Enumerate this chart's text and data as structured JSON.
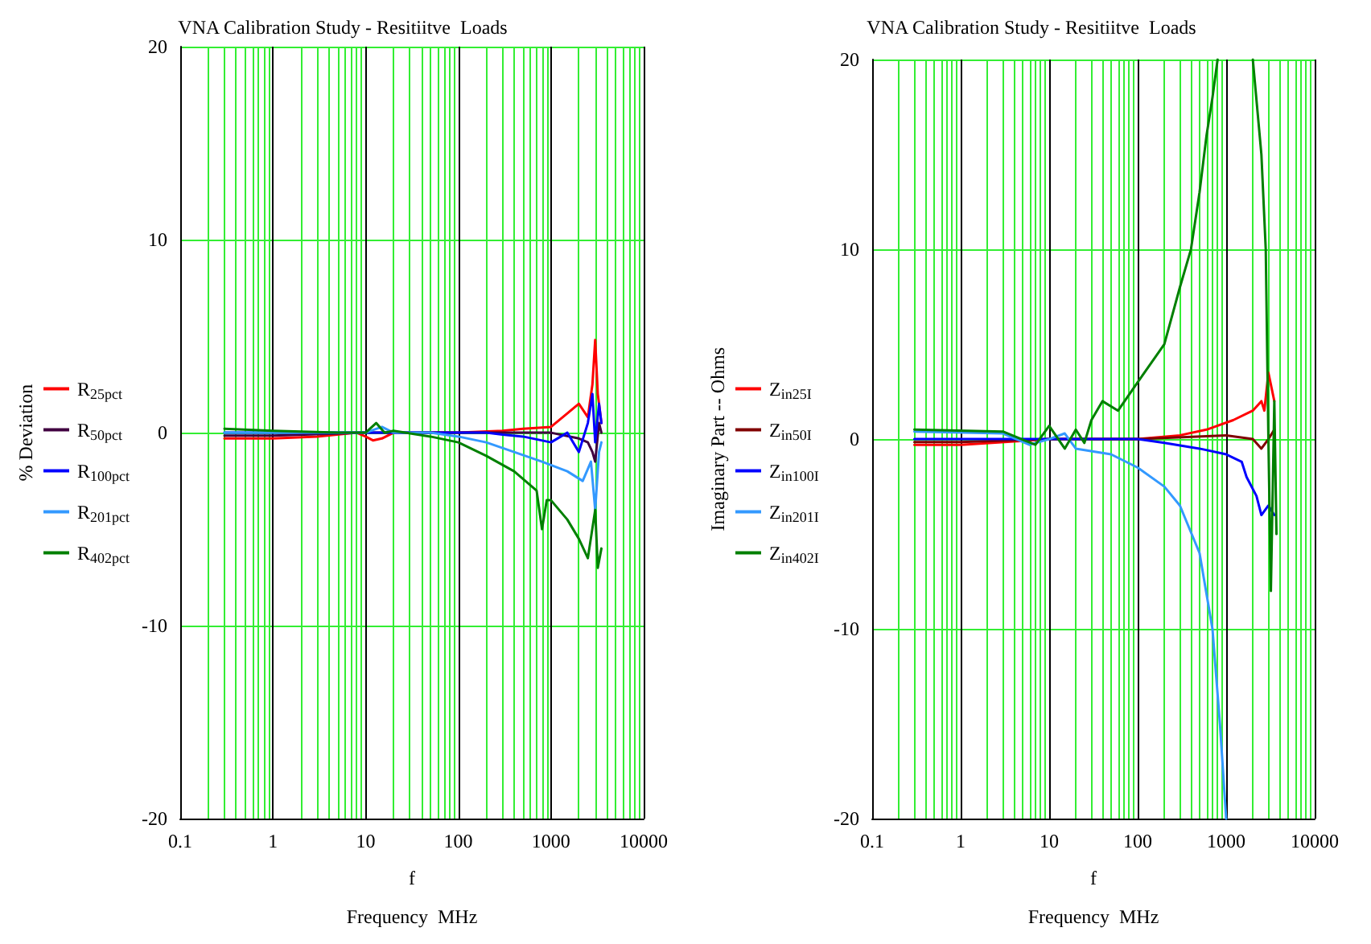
{
  "chart_data": [
    {
      "type": "line",
      "title": "VNA Calibration Study - Resitiitve  Loads",
      "xlabel": "f\nFrequency  MHz",
      "ylabel": "% Deviation",
      "log": "x",
      "grid": true,
      "legend": "left",
      "marker": "none",
      "line_style": "solid",
      "xlim": [
        0.1,
        10000
      ],
      "xticks": [
        0.1,
        1,
        10,
        100,
        1000,
        10000
      ],
      "ylim": [
        -20,
        20
      ],
      "yticks": [
        -20,
        -10,
        0,
        10,
        20
      ],
      "series": [
        {
          "name": "R$_{25pct}$",
          "color": "#ff0000",
          "x": [
            0.3,
            1,
            3,
            8,
            10,
            12,
            15,
            20,
            50,
            100,
            300,
            500,
            1000,
            1500,
            2000,
            2500,
            2800,
            3000,
            3200,
            3500
          ],
          "values": [
            -0.3,
            -0.3,
            -0.2,
            0,
            -0.2,
            -0.4,
            -0.3,
            0,
            0,
            0,
            0.1,
            0.2,
            0.3,
            1,
            1.5,
            0.8,
            2.5,
            4.8,
            2,
            0.5
          ]
        },
        {
          "name": "R$_{50pct}$",
          "color": "#400040",
          "x": [
            0.3,
            1,
            10,
            100,
            1000,
            2000,
            2500,
            2800,
            3000,
            3300,
            3500
          ],
          "values": [
            -0.15,
            -0.15,
            0,
            0,
            0,
            -0.3,
            -0.5,
            -1,
            -1.5,
            0.5,
            0
          ]
        },
        {
          "name": "R$_{100pct}$",
          "color": "#0000ff",
          "x": [
            0.3,
            1,
            10,
            100,
            200,
            300,
            500,
            1000,
            1500,
            2000,
            2500,
            2800,
            3000,
            3300,
            3500
          ],
          "values": [
            0,
            0,
            0,
            0,
            0,
            -0.1,
            -0.2,
            -0.5,
            0,
            -1,
            0.5,
            2,
            -0.5,
            1.5,
            0.5
          ]
        },
        {
          "name": "R$_{201pct}$",
          "color": "#3399ff",
          "x": [
            0.3,
            1,
            10,
            15,
            20,
            50,
            100,
            200,
            400,
            800,
            1500,
            2200,
            2700,
            3000,
            3300,
            3500
          ],
          "values": [
            0,
            0,
            0,
            0.3,
            0,
            0,
            -0.2,
            -0.5,
            -1,
            -1.5,
            -2,
            -2.5,
            -1.5,
            -4,
            -1,
            -0.5
          ]
        },
        {
          "name": "R$_{402pct}$",
          "color": "#007f00",
          "x": [
            0.3,
            1,
            5,
            10,
            13,
            16,
            20,
            50,
            100,
            200,
            400,
            700,
            800,
            900,
            1000,
            1500,
            2000,
            2500,
            3000,
            3200,
            3500
          ],
          "values": [
            0.2,
            0.1,
            0,
            0,
            0.5,
            0,
            0.1,
            -0.2,
            -0.5,
            -1.2,
            -2,
            -3,
            -5,
            -3.5,
            -3.5,
            -4.5,
            -5.5,
            -6.5,
            -4,
            -7,
            -6
          ]
        }
      ]
    },
    {
      "type": "line",
      "title": "VNA Calibration Study - Resitiitve  Loads",
      "xlabel": "f\nFrequency  MHz",
      "ylabel": "Imaginary Part -- Ohms",
      "log": "x",
      "grid": true,
      "legend": "left",
      "marker": "none",
      "line_style": "solid",
      "xlim": [
        0.1,
        10000
      ],
      "xticks": [
        0.1,
        1,
        10,
        100,
        1000,
        10000
      ],
      "ylim": [
        -20,
        20
      ],
      "yticks": [
        -20,
        -10,
        0,
        10,
        20
      ],
      "series": [
        {
          "name": "Z$_{in25I}$",
          "color": "#ff0000",
          "x": [
            0.3,
            1,
            10,
            100,
            300,
            600,
            1200,
            2000,
            2500,
            2700,
            3000,
            3500
          ],
          "values": [
            -0.3,
            -0.3,
            0,
            0,
            0.2,
            0.5,
            1,
            1.5,
            2,
            1.5,
            3.5,
            2
          ]
        },
        {
          "name": "Z$_{in50I}$",
          "color": "#800000",
          "x": [
            0.3,
            1,
            10,
            100,
            1000,
            2000,
            2500,
            3000,
            3500
          ],
          "values": [
            -0.15,
            -0.15,
            0,
            0,
            0.2,
            0,
            -0.5,
            0,
            0.5
          ]
        },
        {
          "name": "Z$_{in100I}$",
          "color": "#0000ff",
          "x": [
            0.3,
            1,
            10,
            100,
            200,
            500,
            1000,
            1500,
            1700,
            2200,
            2500,
            3000,
            3500
          ],
          "values": [
            0,
            0,
            0,
            0,
            -0.2,
            -0.5,
            -0.8,
            -1.2,
            -2,
            -3,
            -4,
            -3.5,
            -4
          ]
        },
        {
          "name": "Z$_{in201I}$",
          "color": "#3399ff",
          "x": [
            0.3,
            3,
            6,
            10,
            15,
            20,
            50,
            100,
            200,
            300,
            500,
            700,
            850,
            1000
          ],
          "values": [
            0.4,
            0.3,
            -0.3,
            0,
            0.3,
            -0.5,
            -0.8,
            -1.5,
            -2.5,
            -3.5,
            -6,
            -10,
            -15,
            -20
          ]
        },
        {
          "name": "Z$_{in402I}$",
          "color": "#007f00",
          "x": [
            0.3,
            3,
            7,
            10,
            15,
            20,
            25,
            30,
            40,
            60,
            100,
            200,
            300,
            400,
            500,
            600,
            700,
            800,
            1000,
            2000,
            2500,
            2800,
            3000,
            3200,
            3500,
            3700
          ],
          "values": [
            0.5,
            0.4,
            -0.3,
            0.7,
            -0.5,
            0.5,
            -0.2,
            1,
            2,
            1.5,
            3,
            5,
            8,
            10,
            13,
            16,
            18,
            20,
            null,
            20,
            15,
            10,
            0,
            -8,
            2,
            -5
          ]
        }
      ]
    }
  ]
}
